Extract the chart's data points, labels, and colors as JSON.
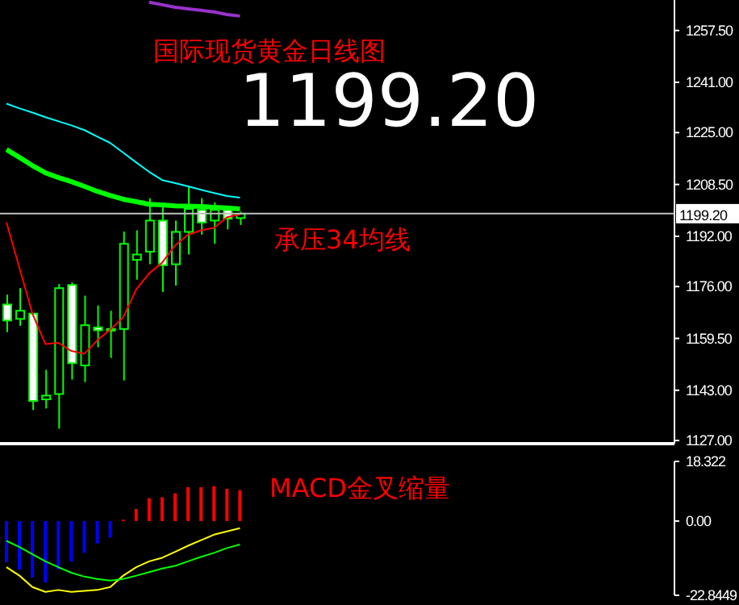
{
  "chart_data": [
    {
      "type": "candlestick",
      "title": "国际现货黄金日线图",
      "annotations": [
        "1199.20",
        "承压34均线"
      ],
      "color": "#00ff00",
      "tick_labels": "y",
      "legend": false,
      "grid": false,
      "categories": [
        null,
        null,
        null,
        null,
        null,
        null,
        null,
        null,
        null,
        null,
        null,
        null,
        null,
        null,
        null,
        null,
        null,
        null,
        null,
        null,
        null,
        null,
        null,
        null,
        null,
        null,
        null,
        null,
        null,
        null,
        null,
        null,
        null,
        null,
        null,
        null,
        null,
        null,
        null,
        null,
        null,
        null,
        null,
        null,
        null,
        null,
        null,
        null,
        null,
        null,
        null,
        null
      ],
      "ohlc": [
        [
          1170.3,
          1173.4,
          1161.5,
          1165.2
        ],
        [
          1165.7,
          1175.5,
          1163.5,
          1168.3
        ],
        [
          1167.4,
          1167.4,
          1136.7,
          1139.6
        ],
        [
          1140.1,
          1149.5,
          1137.2,
          1141.3
        ],
        [
          1141.8,
          1176.8,
          1130.8,
          1175.5
        ],
        [
          1176.5,
          1177.3,
          1146.4,
          1151.6
        ],
        [
          1150.9,
          1173.1,
          1145.6,
          1163.7
        ],
        [
          1163.0,
          1170.0,
          1156.7,
          1162.1
        ],
        [
          1162.1,
          1168.3,
          1153.3,
          1162.5
        ],
        [
          1162.5,
          1193.5,
          1146.1,
          1189.6
        ],
        [
          1184.5,
          1193.9,
          1178.2,
          1186.2
        ],
        [
          1187.1,
          1204.1,
          1183.1,
          1197.0
        ],
        [
          1197.0,
          1201.6,
          1174.3,
          1182.8
        ],
        [
          1183.1,
          1197.0,
          1176.3,
          1193.4
        ],
        [
          1193.4,
          1207.9,
          1186.2,
          1200.7
        ],
        [
          1200.4,
          1204.1,
          1192.5,
          1196.4
        ],
        [
          1197.0,
          1202.8,
          1189.6,
          1200.4
        ],
        [
          1200.4,
          1201.6,
          1194.2,
          1197.6
        ],
        [
          1197.8,
          1199.8,
          1195.6,
          1199.2
        ],
        null,
        null,
        null,
        null,
        null,
        null,
        null,
        null,
        null,
        null,
        null,
        null,
        null,
        null,
        null,
        null,
        null,
        null,
        null,
        null,
        null,
        null,
        null,
        null,
        null,
        null,
        null,
        null,
        null,
        null,
        null,
        null,
        null
      ],
      "series": [
        {
          "type": "line",
          "color": "#ff0000",
          "values": [
            1196.4,
            1181.9,
            1167.4,
            1157.7,
            1158.1,
            1155.5,
            1154.6,
            1158.9,
            1162.3,
            1166.2,
            1175.1,
            1180.2,
            1183.6,
            1189.1,
            1192.5,
            1193.9,
            1194.7,
            1198.1,
            1199.0,
            null,
            null,
            null,
            null,
            null,
            null,
            null,
            null,
            null,
            null,
            null,
            null,
            null,
            null,
            null,
            null,
            null,
            null,
            null,
            null,
            null,
            null,
            null,
            null,
            null,
            null,
            null,
            null,
            null,
            null,
            null,
            null,
            null
          ]
        },
        {
          "type": "line",
          "color": "#00ffff",
          "values": [
            1234.2,
            1232.7,
            1231.4,
            1229.9,
            1228.6,
            1227.3,
            1225.8,
            1223.7,
            1221.7,
            1218.6,
            1215.5,
            1212.5,
            1209.9,
            1208.9,
            1207.9,
            1206.8,
            1205.8,
            1204.8,
            1204.3,
            null,
            null,
            null,
            null,
            null,
            null,
            null,
            null,
            null,
            null,
            null,
            null,
            null,
            null,
            null,
            null,
            null,
            null,
            null,
            null,
            null,
            null,
            null,
            null,
            null,
            null,
            null,
            null,
            null,
            null,
            null,
            null,
            null
          ]
        },
        {
          "type": "line",
          "color": "#00ff00",
          "values": [
            1219.6,
            1217.1,
            1214.5,
            1212.2,
            1210.7,
            1209.4,
            1207.9,
            1206.3,
            1205.0,
            1203.8,
            1203.0,
            1202.2,
            1202.0,
            1201.7,
            1201.6,
            1201.5,
            1201.2,
            1201.0,
            1200.7,
            null,
            null,
            null,
            null,
            null,
            null,
            null,
            null,
            null,
            null,
            null,
            null,
            null,
            null,
            null,
            null,
            null,
            null,
            null,
            null,
            null,
            null,
            null,
            null,
            null,
            null,
            null,
            null,
            null,
            null,
            null,
            null,
            null
          ]
        },
        {
          "type": "line",
          "color": "#9932cc",
          "values": [
            null,
            null,
            null,
            null,
            null,
            null,
            null,
            null,
            null,
            null,
            null,
            1266.5,
            1265.7,
            1264.9,
            1264.4,
            1263.9,
            1263.4,
            1262.6,
            1262.1,
            null,
            null,
            null,
            null,
            null,
            null,
            null,
            null,
            null,
            null,
            null,
            null,
            null,
            null,
            null,
            null,
            null,
            null,
            null,
            null,
            null,
            null,
            null,
            null,
            null,
            null,
            null,
            null,
            null,
            null,
            null,
            null,
            null
          ]
        }
      ],
      "ylim": [
        1126,
        1267.2
      ],
      "yticks": [
        {
          "value": 1127,
          "label": "1127.00"
        },
        {
          "value": 1143,
          "label": "1143.00"
        },
        {
          "value": 1159.5,
          "label": "1159.50"
        },
        {
          "value": 1176,
          "label": "1176.00"
        },
        {
          "value": 1192,
          "label": "1192.00"
        },
        {
          "value": 1208.5,
          "label": "1208.50"
        },
        {
          "value": 1225,
          "label": "1225.00"
        },
        {
          "value": 1241,
          "label": "1241.00"
        },
        {
          "value": 1257.5,
          "label": "1257.50"
        }
      ],
      "ref_lines": [
        {
          "axis": "y",
          "value": 1199.2,
          "label": "1199.20",
          "color": "#c0c0c0"
        }
      ]
    },
    {
      "type": "bar",
      "annotations": [
        "MACD金叉缩量"
      ],
      "tick_labels": "y",
      "legend": false,
      "grid": false,
      "categories": [
        null,
        null,
        null,
        null,
        null,
        null,
        null,
        null,
        null,
        null,
        null,
        null,
        null,
        null,
        null,
        null,
        null,
        null,
        null,
        null,
        null,
        null,
        null,
        null,
        null,
        null,
        null,
        null,
        null,
        null,
        null,
        null,
        null,
        null,
        null,
        null,
        null,
        null,
        null,
        null,
        null,
        null,
        null,
        null,
        null,
        null,
        null,
        null,
        null,
        null,
        null,
        null
      ],
      "series": [
        {
          "type": "bar",
          "values": [
            -12.7,
            -14.9,
            -17.4,
            -18.9,
            -14.9,
            -12.4,
            -9.8,
            -6.9,
            -5.1,
            0.4,
            3.7,
            7.0,
            7.3,
            8.5,
            10.4,
            10.4,
            10.7,
            9.9,
            9.5,
            null,
            null,
            null,
            null,
            null,
            null,
            null,
            null,
            null,
            null,
            null,
            null,
            null,
            null,
            null,
            null,
            null,
            null,
            null,
            null,
            null,
            null,
            null,
            null,
            null,
            null,
            null,
            null,
            null,
            null,
            null,
            null,
            null
          ],
          "colors": [
            "#0000ff",
            "#0000ff",
            "#0000ff",
            "#0000ff",
            "#0000ff",
            "#0000ff",
            "#0000ff",
            "#0000ff",
            "#0000ff",
            "#ff0000",
            "#ff0000",
            "#ff0000",
            "#ff0000",
            "#ff0000",
            "#ff0000",
            "#ff0000",
            "#ff0000",
            "#ff0000",
            "#ff0000",
            null,
            null,
            null,
            null,
            null,
            null,
            null,
            null,
            null,
            null,
            null,
            null,
            null,
            null,
            null,
            null,
            null,
            null,
            null,
            null,
            null,
            null,
            null,
            null,
            null,
            null,
            null,
            null,
            null,
            null,
            null,
            null,
            null
          ]
        },
        {
          "type": "line",
          "color": "#ffff00",
          "values": [
            -14.2,
            -16.8,
            -20.3,
            -21.8,
            -21.2,
            -21.8,
            -21.5,
            -21.2,
            -20.3,
            -16.8,
            -14.2,
            -12.4,
            -11.3,
            -9.5,
            -7.6,
            -5.9,
            -4.2,
            -3.2,
            -2.2,
            null,
            null,
            null,
            null,
            null,
            null,
            null,
            null,
            null,
            null,
            null,
            null,
            null,
            null,
            null,
            null,
            null,
            null,
            null,
            null,
            null,
            null,
            null,
            null,
            null,
            null,
            null,
            null,
            null,
            null,
            null,
            null,
            null
          ]
        },
        {
          "type": "line",
          "color": "#00ff00",
          "values": [
            -6.1,
            -8.0,
            -10.2,
            -12.4,
            -14.2,
            -15.9,
            -17.1,
            -17.8,
            -18.3,
            -17.8,
            -16.8,
            -15.7,
            -14.6,
            -13.8,
            -12.4,
            -11.0,
            -9.8,
            -8.3,
            -7.2,
            null,
            null,
            null,
            null,
            null,
            null,
            null,
            null,
            null,
            null,
            null,
            null,
            null,
            null,
            null,
            null,
            null,
            null,
            null,
            null,
            null,
            null,
            null,
            null,
            null,
            null,
            null,
            null,
            null,
            null,
            null,
            null,
            null
          ]
        }
      ],
      "ylim": [
        -22.8449,
        18.322
      ],
      "yticks": [
        18.322,
        {
          "value": 0,
          "label": "0.00"
        },
        -22.8449
      ]
    }
  ]
}
